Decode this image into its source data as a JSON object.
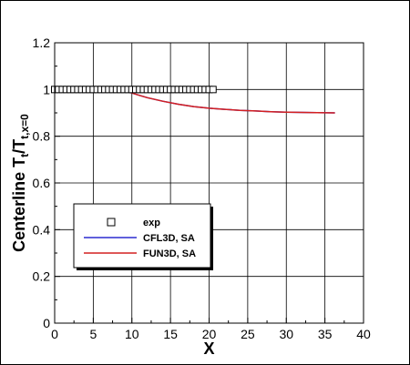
{
  "chart_data": {
    "type": "line",
    "title": "",
    "xlabel": "X",
    "ylabel": {
      "main": "Centerline T",
      "sub1": "t",
      "mid": "/T",
      "sub2": "t,x=0"
    },
    "xlim": [
      0,
      40
    ],
    "ylim": [
      0,
      1.2
    ],
    "xticks": [
      0,
      5,
      10,
      15,
      20,
      25,
      30,
      35,
      40
    ],
    "yticks": [
      0,
      0.2,
      0.4,
      0.6,
      0.8,
      1,
      1.2
    ],
    "xtick_labels": [
      "0",
      "5",
      "10",
      "15",
      "20",
      "25",
      "30",
      "35",
      "40"
    ],
    "ytick_labels": [
      "0",
      "0.2",
      "0.4",
      "0.6",
      "0.8",
      "1",
      "1.2"
    ],
    "grid": true,
    "legend_position": "lower-left",
    "series": [
      {
        "name": "exp",
        "style": "marker",
        "marker": "open-square",
        "color": "#000000",
        "x": [
          0,
          0.5,
          1,
          1.5,
          2,
          2.5,
          3,
          3.5,
          4,
          4.5,
          5,
          5.5,
          6,
          6.5,
          7,
          7.5,
          8,
          8.5,
          9,
          9.5,
          10,
          10.5,
          11,
          11.5,
          12,
          12.5,
          13,
          13.5,
          14,
          14.5,
          15,
          15.5,
          16,
          16.5,
          17,
          17.5,
          18,
          18.5,
          19,
          19.5,
          20,
          20.5
        ],
        "y": [
          1,
          1,
          1,
          1,
          1,
          1,
          1,
          1,
          1,
          1,
          1,
          1,
          1,
          1,
          1,
          1,
          1,
          1,
          1,
          1,
          1,
          1,
          1,
          1,
          1,
          1,
          1,
          1,
          1,
          1,
          1,
          1,
          1,
          1,
          1,
          1,
          1,
          1,
          1,
          1,
          1,
          1
        ]
      },
      {
        "name": "CFL3D, SA",
        "style": "line",
        "color": "#2b2bd0",
        "x": [
          0,
          2,
          4,
          6,
          8,
          9,
          10,
          11,
          12,
          14,
          16,
          18,
          20,
          22,
          24,
          26,
          28,
          30,
          32,
          34,
          36.3
        ],
        "y": [
          1,
          1,
          1,
          1,
          0.998,
          0.993,
          0.985,
          0.975,
          0.965,
          0.95,
          0.937,
          0.927,
          0.92,
          0.915,
          0.911,
          0.908,
          0.905,
          0.903,
          0.902,
          0.901,
          0.9
        ]
      },
      {
        "name": "FUN3D, SA",
        "style": "line",
        "color": "#d42020",
        "x": [
          0,
          2,
          4,
          6,
          8,
          9,
          10,
          11,
          12,
          14,
          16,
          18,
          20,
          22,
          24,
          26,
          28,
          30,
          32,
          34,
          36.3
        ],
        "y": [
          1,
          1,
          1,
          1,
          0.998,
          0.993,
          0.985,
          0.975,
          0.965,
          0.95,
          0.937,
          0.927,
          0.92,
          0.915,
          0.911,
          0.908,
          0.905,
          0.903,
          0.902,
          0.901,
          0.9
        ]
      }
    ]
  }
}
